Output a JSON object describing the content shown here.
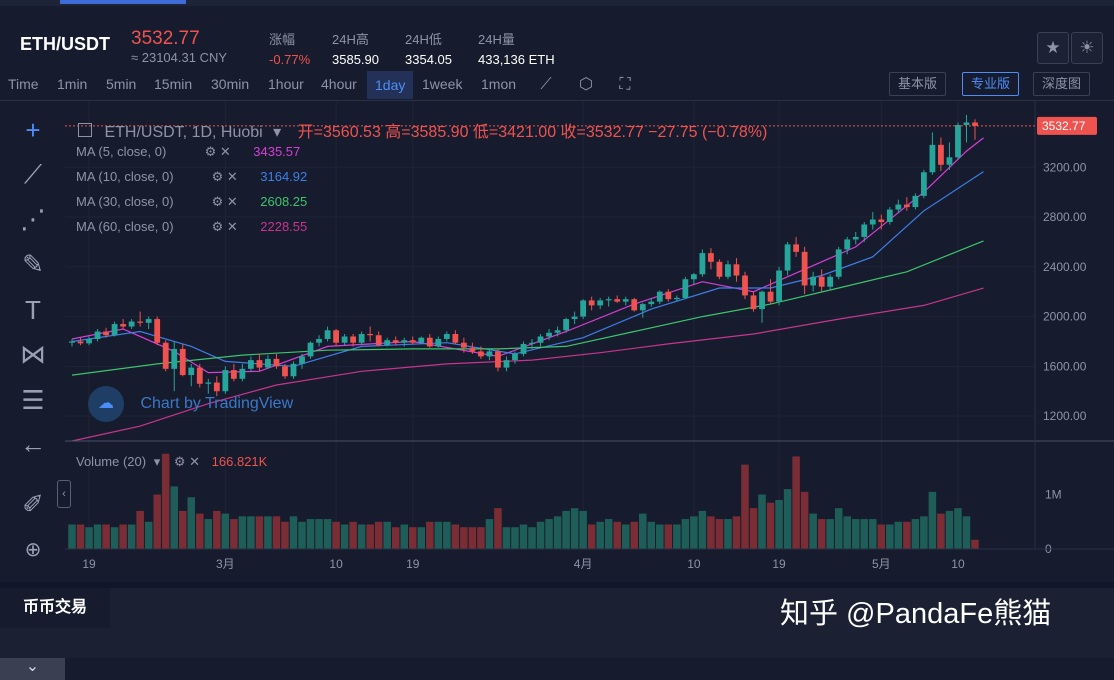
{
  "ticker": {
    "pair": "ETH/USDT",
    "price": "3532.77",
    "cny": "≈ 23104.31 CNY",
    "stats": [
      {
        "label": "涨幅",
        "value": "-0.77%",
        "color": "#ef5350"
      },
      {
        "label": "24H高",
        "value": "3585.90",
        "color": "#ffffff"
      },
      {
        "label": "24H低",
        "value": "3354.05",
        "color": "#ffffff"
      },
      {
        "label": "24H量",
        "value": "433,136 ETH",
        "color": "#ffffff"
      }
    ],
    "icons": [
      "star-icon",
      "theme-icon"
    ]
  },
  "toolbar": {
    "timeframes": [
      "Time",
      "1min",
      "5min",
      "15min",
      "30min",
      "1hour",
      "4hour",
      "1day",
      "1week",
      "1mon"
    ],
    "active": "1day",
    "versions": [
      "基本版",
      "专业版",
      "深度图"
    ],
    "active_version": "专业版"
  },
  "legend": {
    "title": "ETH/USDT, 1D, Huobi",
    "ohlc": "开=3560.53  高=3585.90  低=3421.00  收=3532.77  −27.75 (−0.78%)",
    "ma": [
      {
        "label": "MA (5, close, 0)",
        "value": "3435.57",
        "color": "#d63fd6"
      },
      {
        "label": "MA (10, close, 0)",
        "value": "3164.92",
        "color": "#3f7ee8"
      },
      {
        "label": "MA (30, close, 0)",
        "value": "2608.25",
        "color": "#3ec46d"
      },
      {
        "label": "MA (60, close, 0)",
        "value": "2228.55",
        "color": "#c8358f"
      }
    ],
    "volume_label": "Volume (20)",
    "volume_value": "166.821K",
    "watermark": "Chart by TradingView"
  },
  "chart_data": {
    "type": "candlestick",
    "y_ticks": [
      "1200.00",
      "1600.00",
      "2000.00",
      "2400.00",
      "2800.00",
      "3200.00",
      "3532.77"
    ],
    "ylim": [
      1000,
      3620
    ],
    "x_ticks": [
      "19",
      "3月",
      "10",
      "19",
      "4月",
      "10",
      "19",
      "5月",
      "10"
    ],
    "last_price": 3532.77,
    "volume_ticks": [
      "1M",
      "0"
    ],
    "volume_ylim": [
      0,
      1800000
    ],
    "up_color": "#26a69a",
    "down_color": "#ef5350",
    "candles": [
      [
        1790,
        1820,
        1760,
        1800,
        0.45
      ],
      [
        1800,
        1830,
        1770,
        1785,
        0.45
      ],
      [
        1785,
        1840,
        1770,
        1820,
        0.4
      ],
      [
        1820,
        1900,
        1800,
        1880,
        0.45
      ],
      [
        1880,
        1910,
        1830,
        1850,
        0.45
      ],
      [
        1850,
        1960,
        1840,
        1940,
        0.4
      ],
      [
        1940,
        1980,
        1900,
        1920,
        0.45
      ],
      [
        1920,
        1980,
        1900,
        1960,
        0.45
      ],
      [
        1960,
        2040,
        1920,
        1950,
        0.7
      ],
      [
        1950,
        2000,
        1900,
        1980,
        0.5
      ],
      [
        1980,
        2000,
        1770,
        1790,
        1.0
      ],
      [
        1790,
        1810,
        1560,
        1580,
        1.75
      ],
      [
        1580,
        1800,
        1400,
        1740,
        1.15
      ],
      [
        1740,
        1780,
        1520,
        1530,
        0.7
      ],
      [
        1530,
        1620,
        1440,
        1590,
        0.95
      ],
      [
        1590,
        1620,
        1430,
        1460,
        0.65
      ],
      [
        1460,
        1500,
        1380,
        1470,
        0.55
      ],
      [
        1470,
        1520,
        1360,
        1400,
        0.7
      ],
      [
        1400,
        1600,
        1380,
        1570,
        0.65
      ],
      [
        1570,
        1620,
        1480,
        1500,
        0.55
      ],
      [
        1500,
        1620,
        1480,
        1580,
        0.6
      ],
      [
        1580,
        1680,
        1560,
        1650,
        0.6
      ],
      [
        1650,
        1700,
        1560,
        1590,
        0.6
      ],
      [
        1590,
        1690,
        1580,
        1660,
        0.6
      ],
      [
        1660,
        1700,
        1580,
        1600,
        0.6
      ],
      [
        1600,
        1620,
        1500,
        1520,
        0.5
      ],
      [
        1520,
        1640,
        1500,
        1620,
        0.6
      ],
      [
        1620,
        1700,
        1580,
        1680,
        0.5
      ],
      [
        1680,
        1800,
        1660,
        1790,
        0.55
      ],
      [
        1790,
        1850,
        1760,
        1820,
        0.55
      ],
      [
        1820,
        1920,
        1800,
        1890,
        0.55
      ],
      [
        1890,
        1900,
        1760,
        1790,
        0.5
      ],
      [
        1790,
        1860,
        1770,
        1840,
        0.45
      ],
      [
        1840,
        1860,
        1760,
        1790,
        0.5
      ],
      [
        1790,
        1880,
        1770,
        1860,
        0.45
      ],
      [
        1860,
        1920,
        1800,
        1850,
        0.45
      ],
      [
        1850,
        1880,
        1760,
        1770,
        0.5
      ],
      [
        1770,
        1830,
        1760,
        1810,
        0.5
      ],
      [
        1810,
        1840,
        1770,
        1790,
        0.4
      ],
      [
        1790,
        1830,
        1760,
        1810,
        0.45
      ],
      [
        1810,
        1840,
        1780,
        1790,
        0.4
      ],
      [
        1790,
        1840,
        1780,
        1830,
        0.4
      ],
      [
        1830,
        1860,
        1750,
        1760,
        0.5
      ],
      [
        1760,
        1840,
        1750,
        1820,
        0.5
      ],
      [
        1820,
        1880,
        1800,
        1860,
        0.5
      ],
      [
        1860,
        1890,
        1780,
        1790,
        0.45
      ],
      [
        1790,
        1830,
        1710,
        1750,
        0.4
      ],
      [
        1750,
        1790,
        1700,
        1720,
        0.4
      ],
      [
        1720,
        1760,
        1660,
        1680,
        0.4
      ],
      [
        1680,
        1740,
        1650,
        1720,
        0.55
      ],
      [
        1720,
        1740,
        1560,
        1590,
        0.75
      ],
      [
        1590,
        1680,
        1560,
        1650,
        0.4
      ],
      [
        1650,
        1720,
        1620,
        1700,
        0.4
      ],
      [
        1700,
        1800,
        1680,
        1780,
        0.45
      ],
      [
        1780,
        1820,
        1740,
        1790,
        0.4
      ],
      [
        1790,
        1860,
        1760,
        1840,
        0.5
      ],
      [
        1840,
        1900,
        1810,
        1870,
        0.55
      ],
      [
        1870,
        1920,
        1840,
        1890,
        0.6
      ],
      [
        1890,
        1990,
        1870,
        1980,
        0.7
      ],
      [
        1980,
        2040,
        1940,
        2000,
        0.75
      ],
      [
        2000,
        2140,
        1980,
        2130,
        0.7
      ],
      [
        2130,
        2160,
        2050,
        2090,
        0.45
      ],
      [
        2090,
        2150,
        2060,
        2130,
        0.5
      ],
      [
        2130,
        2160,
        2080,
        2140,
        0.55
      ],
      [
        2140,
        2170,
        2110,
        2120,
        0.5
      ],
      [
        2120,
        2160,
        2090,
        2140,
        0.45
      ],
      [
        2140,
        2150,
        2040,
        2050,
        0.5
      ],
      [
        2050,
        2110,
        1990,
        2100,
        0.65
      ],
      [
        2100,
        2150,
        2080,
        2120,
        0.5
      ],
      [
        2120,
        2210,
        2100,
        2200,
        0.45
      ],
      [
        2200,
        2220,
        2120,
        2140,
        0.45
      ],
      [
        2140,
        2170,
        2120,
        2150,
        0.45
      ],
      [
        2150,
        2320,
        2140,
        2300,
        0.55
      ],
      [
        2300,
        2350,
        2260,
        2340,
        0.6
      ],
      [
        2340,
        2540,
        2320,
        2510,
        0.7
      ],
      [
        2510,
        2550,
        2380,
        2440,
        0.6
      ],
      [
        2440,
        2460,
        2300,
        2320,
        0.55
      ],
      [
        2320,
        2450,
        2300,
        2420,
        0.55
      ],
      [
        2420,
        2470,
        2280,
        2330,
        0.6
      ],
      [
        2330,
        2360,
        2140,
        2170,
        1.55
      ],
      [
        2170,
        2200,
        2040,
        2060,
        0.75
      ],
      [
        2060,
        2210,
        1950,
        2200,
        1.0
      ],
      [
        2200,
        2300,
        2100,
        2120,
        0.85
      ],
      [
        2120,
        2400,
        2090,
        2370,
        0.9
      ],
      [
        2370,
        2600,
        2330,
        2580,
        1.1
      ],
      [
        2580,
        2640,
        2480,
        2520,
        1.7
      ],
      [
        2520,
        2560,
        2180,
        2250,
        1.05
      ],
      [
        2250,
        2360,
        2200,
        2320,
        0.65
      ],
      [
        2320,
        2380,
        2200,
        2240,
        0.55
      ],
      [
        2240,
        2340,
        2210,
        2320,
        0.55
      ],
      [
        2320,
        2560,
        2300,
        2540,
        0.75
      ],
      [
        2540,
        2640,
        2500,
        2620,
        0.6
      ],
      [
        2620,
        2680,
        2580,
        2640,
        0.55
      ],
      [
        2640,
        2760,
        2600,
        2740,
        0.55
      ],
      [
        2740,
        2840,
        2700,
        2780,
        0.55
      ],
      [
        2780,
        2820,
        2700,
        2760,
        0.45
      ],
      [
        2760,
        2880,
        2740,
        2860,
        0.45
      ],
      [
        2860,
        2940,
        2830,
        2900,
        0.5
      ],
      [
        2900,
        2960,
        2850,
        2880,
        0.5
      ],
      [
        2880,
        2990,
        2860,
        2970,
        0.55
      ],
      [
        2970,
        3180,
        2950,
        3160,
        0.6
      ],
      [
        3160,
        3480,
        3140,
        3380,
        1.05
      ],
      [
        3380,
        3440,
        3170,
        3220,
        0.65
      ],
      [
        3220,
        3400,
        3180,
        3280,
        0.7
      ],
      [
        3280,
        3560,
        3260,
        3540,
        0.75
      ],
      [
        3540,
        3620,
        3400,
        3560,
        0.6
      ],
      [
        3560,
        3585.9,
        3421,
        3532.77,
        0.17
      ]
    ],
    "ma_lines": [
      {
        "name": "MA5",
        "color": "#d63fd6",
        "points": [
          [
            0,
            1820
          ],
          [
            6,
            1900
          ],
          [
            12,
            1720
          ],
          [
            16,
            1550
          ],
          [
            22,
            1560
          ],
          [
            30,
            1760
          ],
          [
            40,
            1800
          ],
          [
            50,
            1680
          ],
          [
            58,
            1880
          ],
          [
            66,
            2100
          ],
          [
            74,
            2280
          ],
          [
            80,
            2200
          ],
          [
            86,
            2380
          ],
          [
            92,
            2560
          ],
          [
            100,
            3000
          ],
          [
            105,
            3330
          ],
          [
            107,
            3436
          ]
        ]
      },
      {
        "name": "MA10",
        "color": "#3f7ee8",
        "points": [
          [
            0,
            1800
          ],
          [
            8,
            1880
          ],
          [
            14,
            1760
          ],
          [
            18,
            1640
          ],
          [
            26,
            1600
          ],
          [
            34,
            1760
          ],
          [
            44,
            1790
          ],
          [
            52,
            1700
          ],
          [
            60,
            1830
          ],
          [
            68,
            2060
          ],
          [
            76,
            2230
          ],
          [
            82,
            2230
          ],
          [
            88,
            2330
          ],
          [
            94,
            2480
          ],
          [
            100,
            2850
          ],
          [
            107,
            3165
          ]
        ]
      },
      {
        "name": "MA30",
        "color": "#3ec46d",
        "points": [
          [
            0,
            1530
          ],
          [
            10,
            1620
          ],
          [
            20,
            1690
          ],
          [
            30,
            1730
          ],
          [
            40,
            1740
          ],
          [
            50,
            1740
          ],
          [
            58,
            1760
          ],
          [
            66,
            1880
          ],
          [
            74,
            2000
          ],
          [
            82,
            2100
          ],
          [
            90,
            2230
          ],
          [
            98,
            2360
          ],
          [
            107,
            2608
          ]
        ]
      },
      {
        "name": "MA60",
        "color": "#c8358f",
        "points": [
          [
            0,
            1000
          ],
          [
            8,
            1120
          ],
          [
            16,
            1300
          ],
          [
            24,
            1450
          ],
          [
            34,
            1560
          ],
          [
            44,
            1620
          ],
          [
            54,
            1650
          ],
          [
            62,
            1710
          ],
          [
            70,
            1780
          ],
          [
            80,
            1860
          ],
          [
            90,
            1980
          ],
          [
            100,
            2090
          ],
          [
            107,
            2229
          ]
        ]
      }
    ]
  },
  "bottom": {
    "tab": "币币交易",
    "watermark": "知乎 @PandaFe熊猫"
  }
}
